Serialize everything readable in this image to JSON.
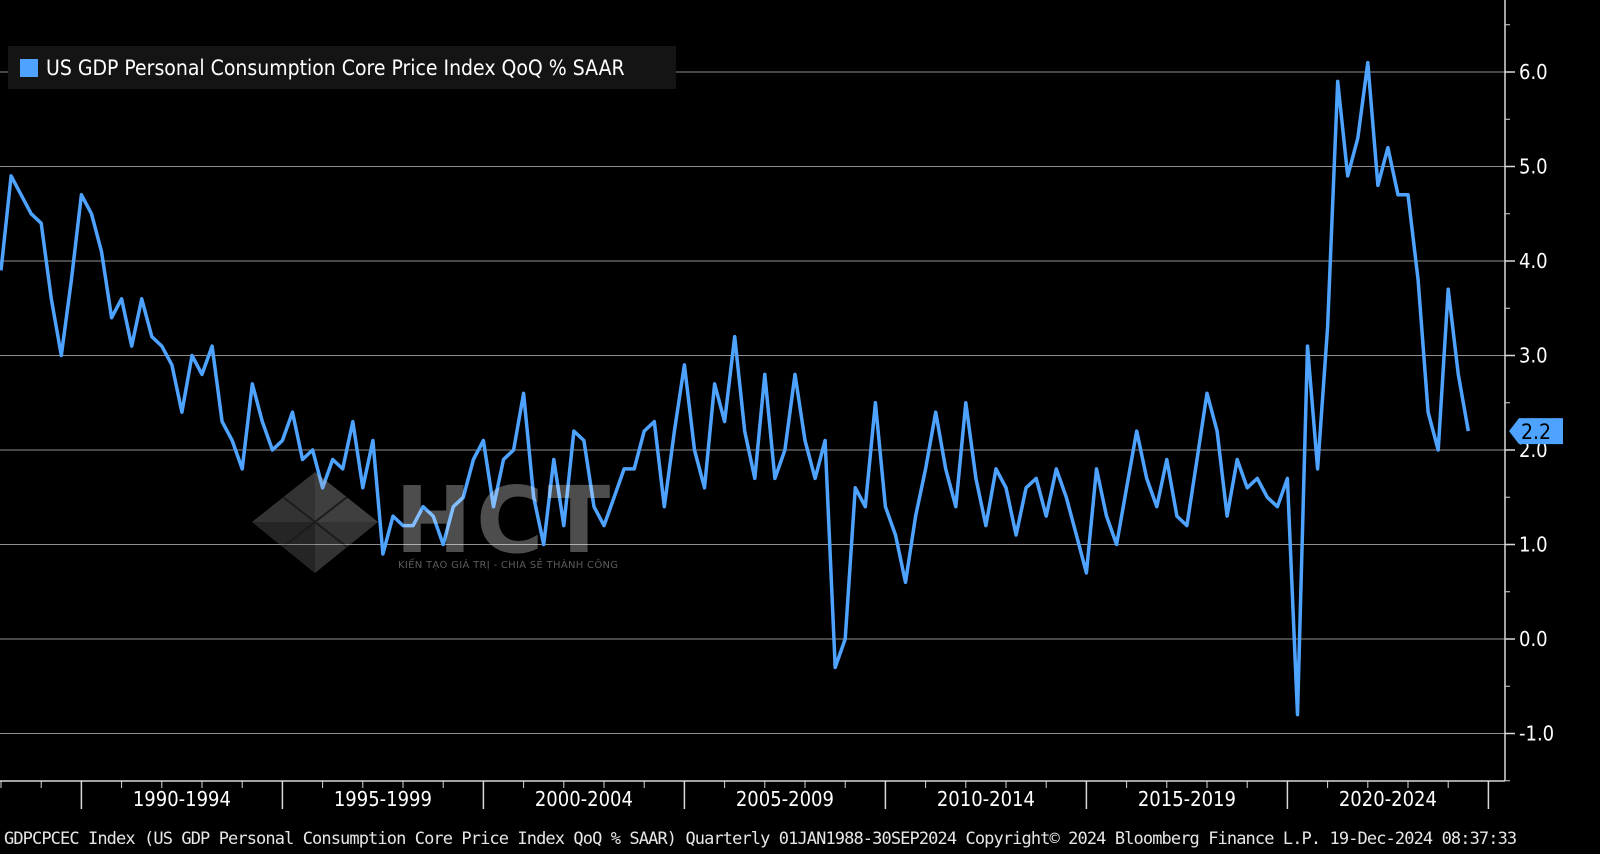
{
  "legend": {
    "label": "US GDP Personal Consumption Core Price Index QoQ % SAAR",
    "color": "#4da3ff"
  },
  "footer": {
    "text": "GDPCPCEC Index (US GDP Personal Consumption Core Price Index QoQ % SAAR)  Quarterly 01JAN1988-30SEP2024  Copyright© 2024 Bloomberg Finance L.P.  19-Dec-2024 08:37:33"
  },
  "watermark": {
    "text": "HCT",
    "tagline": "KIẾN TẠO GIÁ TRỊ - CHIA SẺ THÀNH CÔNG"
  },
  "chart_data": {
    "type": "line",
    "series": [
      {
        "name": "US GDP Personal Consumption Core Price Index QoQ % SAAR",
        "color": "#4da3ff",
        "start": "1988 Q1",
        "end": "2024 Q3",
        "frequency": "quarterly",
        "values": [
          3.9,
          4.9,
          4.7,
          4.5,
          4.4,
          3.6,
          3.0,
          3.8,
          4.7,
          4.5,
          4.1,
          3.4,
          3.6,
          3.1,
          3.6,
          3.2,
          3.1,
          2.9,
          2.4,
          3.0,
          2.8,
          3.1,
          2.3,
          2.1,
          1.8,
          2.7,
          2.3,
          2.0,
          2.1,
          2.4,
          1.9,
          2.0,
          1.6,
          1.9,
          1.8,
          2.3,
          1.6,
          2.1,
          0.9,
          1.3,
          1.2,
          1.2,
          1.4,
          1.3,
          1.0,
          1.4,
          1.5,
          1.9,
          2.1,
          1.4,
          1.9,
          2.0,
          2.6,
          1.5,
          1.0,
          1.9,
          1.2,
          2.2,
          2.1,
          1.4,
          1.2,
          1.5,
          1.8,
          1.8,
          2.2,
          2.3,
          1.4,
          2.2,
          2.9,
          2.0,
          1.6,
          2.7,
          2.3,
          3.2,
          2.2,
          1.7,
          2.8,
          1.7,
          2.0,
          2.8,
          2.1,
          1.7,
          2.1,
          -0.3,
          0.0,
          1.6,
          1.4,
          2.5,
          1.4,
          1.1,
          0.6,
          1.3,
          1.8,
          2.4,
          1.8,
          1.4,
          2.5,
          1.7,
          1.2,
          1.8,
          1.6,
          1.1,
          1.6,
          1.7,
          1.3,
          1.8,
          1.5,
          1.1,
          0.7,
          1.8,
          1.3,
          1.0,
          1.6,
          2.2,
          1.7,
          1.4,
          1.9,
          1.3,
          1.2,
          1.9,
          2.6,
          2.2,
          1.3,
          1.9,
          1.6,
          1.7,
          1.5,
          1.4,
          1.7,
          -0.8,
          3.1,
          1.8,
          3.3,
          5.9,
          4.9,
          5.3,
          6.1,
          4.8,
          5.2,
          4.7,
          4.7,
          3.8,
          2.4,
          2.0,
          3.7,
          2.8,
          2.2
        ]
      }
    ],
    "last_value_label": "2.2",
    "x_ticks": [
      "1990-1994",
      "1995-1999",
      "2000-2004",
      "2005-2009",
      "2010-2014",
      "2015-2019",
      "2020-2024"
    ],
    "y_ticks": [
      "-1.0",
      "0.0",
      "1.0",
      "2.0",
      "3.0",
      "4.0",
      "5.0",
      "6.0"
    ],
    "ylim": [
      -1.5,
      6.7
    ],
    "grid": true,
    "legend_position": "top-left",
    "title": "",
    "xlabel": "",
    "ylabel": ""
  }
}
